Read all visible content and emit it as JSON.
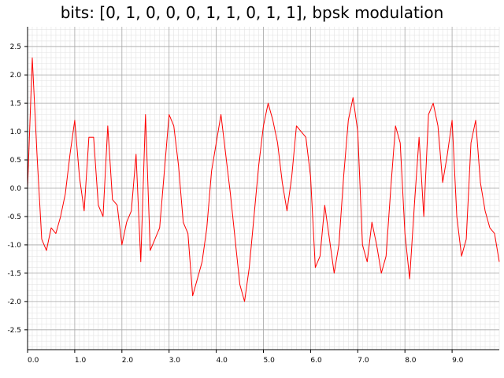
{
  "chart_data": {
    "type": "line",
    "title": "bits: [0, 1, 0, 0, 0, 1, 1, 0, 1, 1], bpsk modulation",
    "xlabel": "",
    "ylabel": "",
    "xlim": [
      0,
      10
    ],
    "ylim": [
      -2.85,
      2.85
    ],
    "x_ticks": [
      0.0,
      1.0,
      2.0,
      3.0,
      4.0,
      5.0,
      6.0,
      7.0,
      8.0,
      9.0
    ],
    "x_tick_labels": [
      "0.0",
      "1.0",
      "2.0",
      "3.0",
      "4.0",
      "5.0",
      "6.0",
      "7.0",
      "8.0",
      "9.0"
    ],
    "y_ticks": [
      2.5,
      2.0,
      1.5,
      1.0,
      0.5,
      0.0,
      -0.5,
      -1.0,
      -1.5,
      -2.0,
      -2.5
    ],
    "y_tick_labels": [
      "2.5",
      "2.0",
      "1.5",
      "1.0",
      "0.5",
      "0.0",
      "-0.5",
      "-1.0",
      "-1.5",
      "-2.0",
      "-2.5"
    ],
    "grid": true,
    "legend": "none",
    "series": [
      {
        "color": "#ff0000",
        "x": [
          0.0,
          0.1,
          0.2,
          0.3,
          0.4,
          0.5,
          0.6,
          0.7,
          0.8,
          0.9,
          1.0,
          1.1,
          1.2,
          1.3,
          1.4,
          1.5,
          1.6,
          1.7,
          1.8,
          1.9,
          2.0,
          2.1,
          2.2,
          2.3,
          2.4,
          2.5,
          2.6,
          2.7,
          2.8,
          2.9,
          3.0,
          3.1,
          3.2,
          3.3,
          3.4,
          3.5,
          3.6,
          3.7,
          3.8,
          3.9,
          4.0,
          4.1,
          4.2,
          4.3,
          4.4,
          4.5,
          4.6,
          4.7,
          4.8,
          4.9,
          5.0,
          5.1,
          5.2,
          5.3,
          5.4,
          5.5,
          5.6,
          5.7,
          5.8,
          5.9,
          6.0,
          6.1,
          6.2,
          6.3,
          6.4,
          6.5,
          6.6,
          6.7,
          6.8,
          6.9,
          7.0,
          7.1,
          7.2,
          7.3,
          7.4,
          7.5,
          7.6,
          7.7,
          7.8,
          7.9,
          8.0,
          8.1,
          8.2,
          8.3,
          8.4,
          8.5,
          8.6,
          8.7,
          8.8,
          8.9,
          9.0,
          9.1,
          9.2,
          9.3,
          9.4,
          9.5,
          9.6,
          9.7,
          9.8,
          9.9,
          10.0
        ],
        "y": [
          0.0,
          2.3,
          0.6,
          -0.9,
          -1.1,
          -0.7,
          -0.8,
          -0.5,
          -0.1,
          0.6,
          1.2,
          0.2,
          -0.4,
          0.9,
          0.9,
          -0.3,
          -0.5,
          1.1,
          -0.2,
          -0.3,
          -1.0,
          -0.6,
          -0.4,
          0.6,
          -1.3,
          1.3,
          -1.1,
          -0.9,
          -0.7,
          0.3,
          1.3,
          1.1,
          0.4,
          -0.6,
          -0.8,
          -1.9,
          -1.6,
          -1.3,
          -0.7,
          0.3,
          0.8,
          1.3,
          0.6,
          -0.1,
          -0.9,
          -1.7,
          -2.0,
          -1.4,
          -0.5,
          0.4,
          1.1,
          1.5,
          1.2,
          0.8,
          0.1,
          -0.4,
          0.2,
          1.1,
          1.0,
          0.9,
          0.2,
          -1.4,
          -1.2,
          -0.3,
          -0.9,
          -1.5,
          -1.0,
          0.2,
          1.2,
          1.6,
          1.0,
          -1.0,
          -1.3,
          -0.6,
          -1.0,
          -1.5,
          -1.2,
          0.0,
          1.1,
          0.8,
          -0.8,
          -1.6,
          -0.3,
          0.9,
          -0.5,
          1.3,
          1.5,
          1.1,
          0.1,
          0.6,
          1.2,
          -0.5,
          -1.2,
          -0.9,
          0.8,
          1.2,
          0.1,
          -0.4,
          -0.7,
          -0.8,
          -1.3
        ]
      }
    ]
  }
}
